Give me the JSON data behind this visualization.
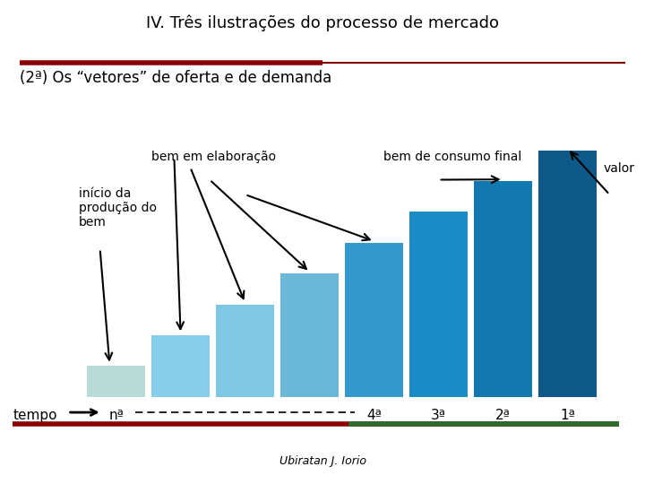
{
  "title": "IV. Três ilustrações do processo de mercado",
  "subtitle": "(2ª) Os “vetores” de oferta e de demanda",
  "author": "Ubiratan J. Iorio",
  "bar_labels": [
    "nª",
    "",
    "",
    "",
    "4ª",
    "3ª",
    "2ª",
    "1ª"
  ],
  "bar_heights": [
    1,
    2,
    3,
    4,
    5,
    6,
    7,
    8
  ],
  "bar_colors": [
    "#b8dbd8",
    "#87ceeb",
    "#7ec8e3",
    "#6ab8d8",
    "#3399cc",
    "#1a8bc4",
    "#1278b0",
    "#0d5a8a"
  ],
  "label_inicio": "início da\nprodução do\nbem",
  "label_elaboracao": "bem em elaboração",
  "label_consumo": "bem de consumo final",
  "label_valor": "valor",
  "label_tempo": "tempo",
  "bg_color": "#ffffff",
  "title_color": "#000000",
  "red_line_color": "#8b0000",
  "green_line_color": "#2d6a2d",
  "n_bars": 8,
  "bar_width": 0.9
}
